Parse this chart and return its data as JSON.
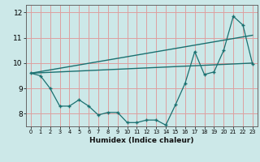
{
  "title": "",
  "xlabel": "Humidex (Indice chaleur)",
  "bg_color": "#cce8e8",
  "grid_color": "#dda0a0",
  "line_color": "#1a7070",
  "xlim": [
    -0.5,
    23.5
  ],
  "ylim": [
    7.5,
    12.3
  ],
  "xticks": [
    0,
    1,
    2,
    3,
    4,
    5,
    6,
    7,
    8,
    9,
    10,
    11,
    12,
    13,
    14,
    15,
    16,
    17,
    18,
    19,
    20,
    21,
    22,
    23
  ],
  "yticks": [
    8,
    9,
    10,
    11,
    12
  ],
  "line1_x": [
    0,
    1,
    2,
    3,
    4,
    5,
    6,
    7,
    8,
    9,
    10,
    11,
    12,
    13,
    14,
    15,
    16,
    17,
    18,
    19,
    20,
    21,
    22,
    23
  ],
  "line1_y": [
    9.6,
    9.5,
    9.0,
    8.3,
    8.3,
    8.55,
    8.3,
    7.95,
    8.05,
    8.05,
    7.65,
    7.65,
    7.75,
    7.75,
    7.55,
    8.35,
    9.2,
    10.45,
    9.55,
    9.65,
    10.5,
    11.85,
    11.5,
    9.95
  ],
  "line2_x": [
    0,
    23
  ],
  "line2_y": [
    9.6,
    10.0
  ],
  "line3_x": [
    0,
    23
  ],
  "line3_y": [
    9.6,
    11.1
  ]
}
